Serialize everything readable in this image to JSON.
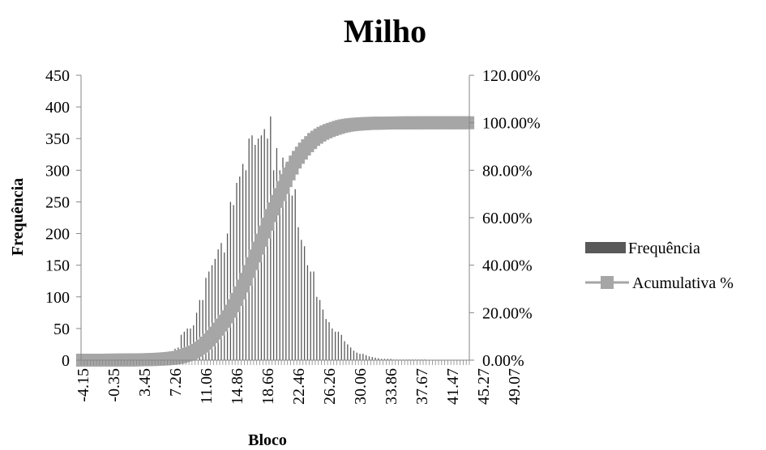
{
  "chart_data": {
    "type": "bar",
    "title": "Milho",
    "xlabel": "Bloco",
    "ylabel": "Frequência",
    "ylim": [
      0,
      450
    ],
    "y2lim": [
      0,
      1.2
    ],
    "y_ticks": [
      "0",
      "50",
      "100",
      "150",
      "200",
      "250",
      "300",
      "350",
      "400",
      "450"
    ],
    "y2_ticks": [
      "0.00%",
      "20.00%",
      "40.00%",
      "60.00%",
      "80.00%",
      "100.00%",
      "120.00%"
    ],
    "x_tick_labels": [
      "-4.15",
      "-0.35",
      "3.45",
      "7.26",
      "11.06",
      "14.86",
      "18.66",
      "22.46",
      "26.26",
      "30.06",
      "33.86",
      "37.67",
      "41.47",
      "45.27",
      "49.07"
    ],
    "x_start": -4.15,
    "bin_width": 0.38,
    "grid": false,
    "legend_position": "right",
    "series": [
      {
        "name": "Frequência",
        "kind": "bar",
        "color": "#595959",
        "values": [
          0,
          0,
          0,
          0,
          0,
          0,
          0,
          0,
          1,
          1,
          1,
          1,
          1,
          1,
          1,
          1,
          2,
          2,
          2,
          2,
          3,
          3,
          4,
          5,
          6,
          6,
          8,
          10,
          12,
          14,
          18,
          20,
          40,
          45,
          50,
          50,
          55,
          75,
          95,
          95,
          130,
          140,
          150,
          160,
          175,
          185,
          170,
          200,
          250,
          245,
          280,
          290,
          310,
          300,
          350,
          355,
          340,
          350,
          355,
          365,
          350,
          385,
          300,
          335,
          300,
          320,
          310,
          300,
          260,
          270,
          210,
          190,
          180,
          150,
          140,
          140,
          100,
          95,
          80,
          65,
          60,
          50,
          45,
          45,
          40,
          30,
          25,
          20,
          15,
          12,
          10,
          10,
          8,
          6,
          5,
          4,
          3,
          2,
          2,
          2,
          2,
          1,
          1,
          1,
          1,
          1,
          1,
          1,
          1,
          1,
          1,
          1,
          0,
          0,
          0,
          0,
          0,
          0,
          0,
          0,
          0,
          0,
          0,
          0,
          0,
          0
        ]
      },
      {
        "name": "Acumulativa %",
        "kind": "line",
        "color": "#a6a6a6",
        "axis": "secondary"
      }
    ]
  }
}
